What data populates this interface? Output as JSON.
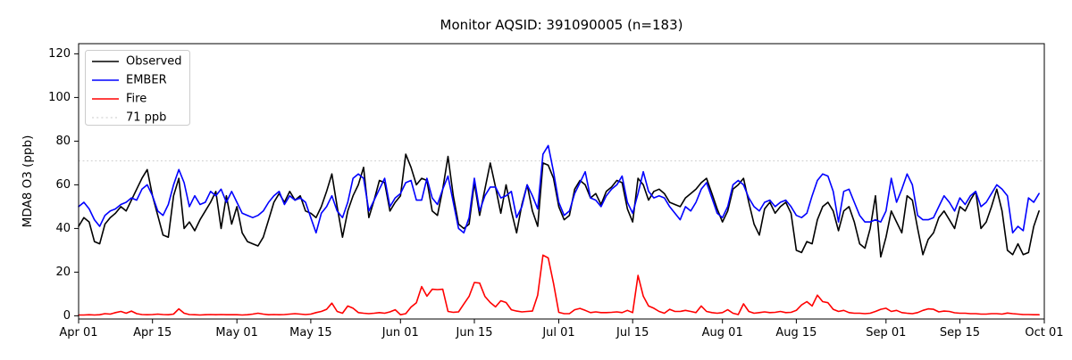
{
  "title": "Monitor AQSID: 391090005 (n=183)",
  "axes": {
    "y_label": "MDA8 O3 (ppb)",
    "y_ticks": [
      0,
      20,
      40,
      60,
      80,
      100,
      120
    ],
    "x_ticks": [
      {
        "label": "Apr 01",
        "day": 0
      },
      {
        "label": "Apr 15",
        "day": 14
      },
      {
        "label": "May 01",
        "day": 30
      },
      {
        "label": "May 15",
        "day": 44
      },
      {
        "label": "Jun 01",
        "day": 61
      },
      {
        "label": "Jun 15",
        "day": 75
      },
      {
        "label": "Jul 01",
        "day": 91
      },
      {
        "label": "Jul 15",
        "day": 105
      },
      {
        "label": "Aug 01",
        "day": 122
      },
      {
        "label": "Aug 15",
        "day": 136
      },
      {
        "label": "Sep 01",
        "day": 153
      },
      {
        "label": "Sep 15",
        "day": 167
      },
      {
        "label": "Oct 01",
        "day": 183
      }
    ]
  },
  "legend": {
    "entries": [
      {
        "label": "Observed",
        "color": "#000000",
        "style": "solid"
      },
      {
        "label": "EMBER",
        "color": "#0000ff",
        "style": "solid"
      },
      {
        "label": "Fire",
        "color": "#ff0000",
        "style": "solid"
      },
      {
        "label": "71 ppb",
        "color": "#d3d3d3",
        "style": "dotted"
      }
    ]
  },
  "chart_data": {
    "type": "line",
    "title": "Monitor AQSID: 391090005 (n=183)",
    "xlabel": "",
    "ylabel": "MDA8 O3 (ppb)",
    "n_points": 183,
    "x_unit": "daily values, day index 0 = Apr 01, last point = Sep 30",
    "x_tick_labels": [
      "Apr 01",
      "Apr 15",
      "May 01",
      "May 15",
      "Jun 01",
      "Jun 15",
      "Jul 01",
      "Jul 15",
      "Aug 01",
      "Aug 15",
      "Sep 01",
      "Sep 15",
      "Oct 01"
    ],
    "ylim": [
      -1.45,
      124.65
    ],
    "y_ticks": [
      0,
      20,
      40,
      60,
      80,
      100,
      120
    ],
    "grid": false,
    "legend_position": "upper left",
    "reference_line": {
      "label": "71 ppb",
      "value": 71,
      "color": "#d3d3d3",
      "style": "dotted"
    },
    "series": [
      {
        "name": "Observed",
        "color": "#000000",
        "values": [
          41,
          45,
          43,
          34,
          33,
          42,
          45,
          47,
          50,
          48,
          53,
          58,
          63,
          67,
          55,
          46,
          37,
          36,
          55,
          63,
          40,
          43,
          39,
          44,
          48,
          52,
          57,
          40,
          55,
          42,
          50,
          38,
          34,
          33,
          32,
          36,
          44,
          52,
          56,
          52,
          57,
          53,
          55,
          48,
          47,
          45,
          50,
          57,
          65,
          50,
          36,
          48,
          55,
          60,
          68,
          45,
          53,
          62,
          61,
          48,
          52,
          55,
          74,
          68,
          60,
          63,
          62,
          48,
          46,
          58,
          73,
          55,
          42,
          40,
          42,
          61,
          46,
          58,
          70,
          59,
          47,
          60,
          48,
          38,
          51,
          60,
          48,
          41,
          70,
          69,
          63,
          50,
          44,
          46,
          58,
          62,
          60,
          54,
          56,
          51,
          57,
          59,
          62,
          61,
          49,
          43,
          63,
          60,
          53,
          57,
          58,
          56,
          52,
          51,
          50,
          54,
          56,
          58,
          61,
          63,
          56,
          49,
          43,
          48,
          58,
          60,
          63,
          52,
          42,
          37,
          49,
          52,
          47,
          50,
          52,
          47,
          30,
          29,
          34,
          33,
          44,
          50,
          52,
          48,
          39,
          48,
          50,
          43,
          33,
          31,
          40,
          55,
          27,
          36,
          48,
          43,
          38,
          55,
          53,
          40,
          28,
          35,
          38,
          45,
          48,
          44,
          40,
          50,
          48,
          53,
          57,
          40,
          43,
          50,
          58,
          48,
          30,
          28,
          33,
          28,
          29,
          41,
          48
        ]
      },
      {
        "name": "EMBER",
        "color": "#0000ff",
        "values": [
          50,
          52,
          49,
          44,
          41,
          46,
          48,
          49,
          51,
          52,
          54,
          53,
          58,
          60,
          55,
          48,
          46,
          51,
          60,
          67,
          61,
          50,
          55,
          51,
          52,
          57,
          55,
          58,
          52,
          57,
          52,
          47,
          46,
          45,
          46,
          48,
          52,
          55,
          57,
          51,
          55,
          53,
          54,
          52,
          45,
          38,
          47,
          50,
          55,
          48,
          45,
          52,
          63,
          65,
          63,
          48,
          53,
          58,
          63,
          50,
          54,
          56,
          61,
          62,
          53,
          53,
          63,
          54,
          51,
          58,
          64,
          52,
          40,
          38,
          45,
          63,
          48,
          55,
          59,
          59,
          54,
          55,
          57,
          45,
          50,
          60,
          55,
          49,
          74,
          78,
          66,
          52,
          46,
          48,
          56,
          61,
          66,
          54,
          53,
          50,
          55,
          58,
          60,
          64,
          52,
          47,
          56,
          66,
          57,
          54,
          55,
          54,
          50,
          47,
          44,
          50,
          48,
          52,
          58,
          61,
          54,
          47,
          45,
          50,
          60,
          62,
          60,
          54,
          50,
          48,
          52,
          53,
          50,
          52,
          53,
          50,
          46,
          45,
          47,
          55,
          62,
          65,
          64,
          57,
          43,
          57,
          58,
          52,
          46,
          43,
          43,
          44,
          43,
          48,
          63,
          52,
          58,
          65,
          60,
          46,
          44,
          44,
          45,
          50,
          55,
          52,
          48,
          54,
          51,
          55,
          57,
          50,
          52,
          56,
          60,
          58,
          55,
          38,
          41,
          39,
          54,
          52,
          56
        ]
      },
      {
        "name": "Fire",
        "color": "#ff0000",
        "values": [
          0.4,
          0.4,
          0.5,
          0.4,
          0.5,
          1,
          0.8,
          1.5,
          2,
          1.2,
          2.2,
          1,
          0.6,
          0.5,
          0.6,
          0.8,
          0.6,
          0.5,
          0.8,
          3.2,
          1.2,
          0.6,
          0.5,
          0.4,
          0.5,
          0.6,
          0.5,
          0.6,
          0.5,
          0.5,
          0.5,
          0.4,
          0.5,
          0.8,
          1.2,
          0.8,
          0.5,
          0.6,
          0.5,
          0.6,
          0.8,
          1,
          0.8,
          0.6,
          0.8,
          1.5,
          2,
          3,
          5.8,
          2,
          1.2,
          4.5,
          3.5,
          1.5,
          1.2,
          1,
          1.2,
          1.5,
          1.2,
          1.8,
          2.8,
          0.5,
          1,
          4,
          6,
          13.4,
          9,
          12.2,
          12,
          12.2,
          2,
          1.6,
          1.8,
          5.4,
          8.9,
          15.3,
          15,
          8.9,
          6.1,
          4.1,
          6.9,
          6.1,
          2.8,
          2.2,
          1.8,
          2,
          2.2,
          9.5,
          27.8,
          26.5,
          14.9,
          1.6,
          1,
          1,
          2.8,
          3.4,
          2.5,
          1.5,
          1.8,
          1.5,
          1.5,
          1.6,
          1.8,
          1.5,
          2.5,
          1.5,
          18.5,
          9,
          4.5,
          3.5,
          2,
          1.2,
          3,
          2,
          2,
          2.5,
          2,
          1.5,
          4.5,
          2,
          1.5,
          1.2,
          1.5,
          2.8,
          1.2,
          0.6,
          5.5,
          2,
          1.2,
          1.5,
          1.8,
          1.5,
          1.6,
          2,
          1.5,
          1.6,
          2.5,
          5,
          6.5,
          4.5,
          9.5,
          6.5,
          6,
          3,
          2,
          2.5,
          1.5,
          1.2,
          1.2,
          1,
          1.2,
          2,
          3,
          3.5,
          2,
          2.5,
          1.5,
          1.2,
          1,
          1.5,
          2.5,
          3.2,
          3,
          1.8,
          2.2,
          2,
          1.4,
          1.2,
          1.2,
          1,
          1,
          0.8,
          0.8,
          1,
          1,
          0.8,
          1.3,
          1,
          0.8,
          0.6,
          0.6,
          0.5,
          0.5
        ]
      }
    ]
  }
}
